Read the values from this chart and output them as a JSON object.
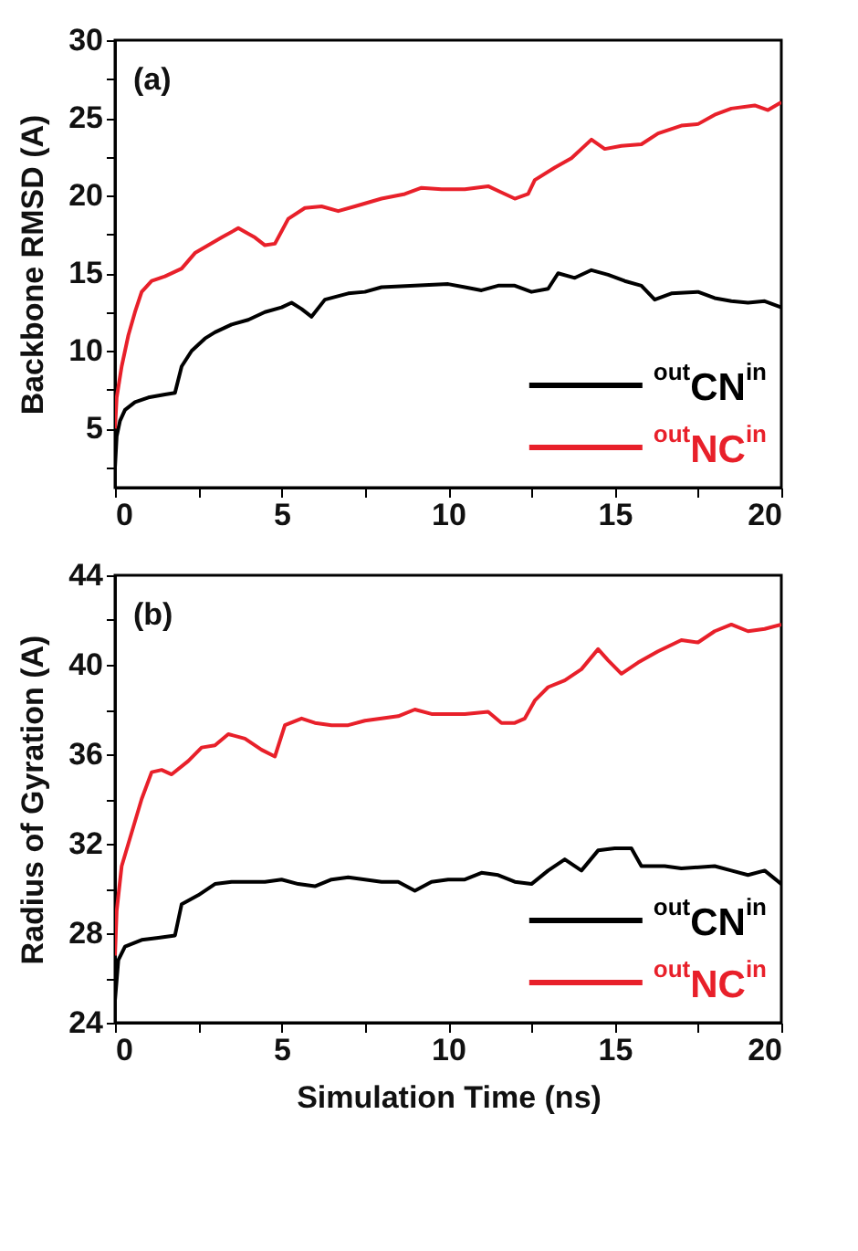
{
  "chart_data": [
    {
      "type": "line",
      "ylabel": "Backbone RMSD (A)",
      "annotations": [
        "(a)"
      ],
      "legend": "bottom right",
      "xlim": [
        0,
        20
      ],
      "xticks": [
        0,
        {
          "value": 2.5,
          "label": null
        },
        5,
        {
          "value": 7.5,
          "label": null
        },
        10,
        {
          "value": 12.5,
          "label": null
        },
        15,
        {
          "value": 17.5,
          "label": null
        },
        20
      ],
      "ylim": [
        1.2,
        30
      ],
      "yticks": [
        {
          "value": 2.5,
          "label": null
        },
        5,
        {
          "value": 7.5,
          "label": null
        },
        10,
        {
          "value": 12.5,
          "label": null
        },
        15,
        {
          "value": 17.5,
          "label": null
        },
        20,
        {
          "value": 22.5,
          "label": null
        },
        25,
        {
          "value": 27.5,
          "label": null
        },
        30
      ],
      "x": [
        0,
        0.05,
        0.15,
        0.3,
        0.6,
        1,
        1.5,
        1.8,
        2,
        2.3,
        2.7,
        3,
        3.5,
        4,
        4.5,
        5,
        5.3,
        5.6,
        5.9,
        6.3,
        7,
        7.5,
        8,
        9,
        10,
        10.5,
        11,
        11.5,
        12,
        12.5,
        13,
        13.3,
        13.8,
        14.3,
        14.8,
        15.3,
        15.8,
        16.2,
        16.7,
        17.5,
        18,
        18.5,
        19,
        19.5,
        20
      ],
      "series": [
        {
          "name": "$^{out}$CN$^{in}$",
          "color": "#000000",
          "values": [
            2.5,
            4.5,
            5.5,
            6.2,
            6.7,
            7,
            7.2,
            7.3,
            9,
            10,
            10.8,
            11.2,
            11.7,
            12,
            12.5,
            12.8,
            13.1,
            12.7,
            12.2,
            13.3,
            13.7,
            13.8,
            14.1,
            14.2,
            14.3,
            14.1,
            13.9,
            14.2,
            14.2,
            13.8,
            14,
            15,
            14.7,
            15.2,
            14.9,
            14.5,
            14.2,
            13.3,
            13.7,
            13.8,
            13.4,
            13.2,
            13.1,
            13.2,
            12.8
          ]
        },
        {
          "name": "$^{out}$NC$^{in}$",
          "color": "#e8202a",
          "x": [
            0,
            0.05,
            0.2,
            0.4,
            0.6,
            0.8,
            1.1,
            1.5,
            2,
            2.4,
            2.8,
            3.2,
            3.7,
            4.2,
            4.5,
            4.8,
            5.2,
            5.7,
            6.2,
            6.7,
            7.2,
            8,
            8.7,
            9.2,
            9.8,
            10.5,
            11.2,
            11.6,
            12,
            12.4,
            12.6,
            13.2,
            13.7,
            14.3,
            14.7,
            15.2,
            15.8,
            16.3,
            17,
            17.5,
            18,
            18.5,
            19.2,
            19.6,
            20
          ],
          "values": [
            5,
            7,
            9,
            11,
            12.5,
            13.8,
            14.5,
            14.8,
            15.3,
            16.3,
            16.8,
            17.3,
            17.9,
            17.3,
            16.8,
            16.9,
            18.5,
            19.2,
            19.3,
            19,
            19.3,
            19.8,
            20.1,
            20.5,
            20.4,
            20.4,
            20.6,
            20.2,
            19.8,
            20.1,
            21,
            21.8,
            22.4,
            23.6,
            23,
            23.2,
            23.3,
            24,
            24.5,
            24.6,
            25.2,
            25.6,
            25.8,
            25.5,
            26
          ]
        }
      ]
    },
    {
      "type": "line",
      "xlabel": "Simulation Time (ns)",
      "ylabel": "Radius of Gyration (A)",
      "annotations": [
        "(b)"
      ],
      "legend": "bottom right",
      "xlim": [
        0,
        20
      ],
      "xticks": [
        0,
        {
          "value": 2.5,
          "label": null
        },
        5,
        {
          "value": 7.5,
          "label": null
        },
        10,
        {
          "value": 12.5,
          "label": null
        },
        15,
        {
          "value": 17.5,
          "label": null
        },
        20
      ],
      "ylim": [
        24,
        44
      ],
      "yticks": [
        24,
        {
          "value": 26,
          "label": null
        },
        28,
        {
          "value": 30,
          "label": null
        },
        32,
        {
          "value": 34,
          "label": null
        },
        36,
        {
          "value": 38,
          "label": null
        },
        40,
        {
          "value": 42,
          "label": null
        },
        44
      ],
      "x": [
        0,
        0.1,
        0.3,
        0.8,
        1.3,
        1.8,
        2,
        2.5,
        3,
        3.5,
        4,
        4.5,
        5,
        5.5,
        6,
        6.5,
        7,
        8,
        8.5,
        9,
        9.5,
        10,
        10.5,
        11,
        11.5,
        12,
        12.5,
        13,
        13.5,
        14,
        14.5,
        15,
        15.5,
        15.8,
        16.5,
        17,
        18,
        18.5,
        19,
        19.5,
        20
      ],
      "series": [
        {
          "name": "$^{out}$CN$^{in}$",
          "color": "#000000",
          "values": [
            25,
            26.8,
            27.4,
            27.7,
            27.8,
            27.9,
            29.3,
            29.7,
            30.2,
            30.3,
            30.3,
            30.3,
            30.4,
            30.2,
            30.1,
            30.4,
            30.5,
            30.3,
            30.3,
            29.9,
            30.3,
            30.4,
            30.4,
            30.7,
            30.6,
            30.3,
            30.2,
            30.8,
            31.3,
            30.8,
            31.7,
            31.8,
            31.8,
            31,
            31,
            30.9,
            31,
            30.8,
            30.6,
            30.8,
            30.2
          ]
        },
        {
          "name": "$^{out}$NC$^{in}$",
          "color": "#e8202a",
          "x": [
            0,
            0.05,
            0.2,
            0.5,
            0.8,
            1.1,
            1.4,
            1.7,
            2.2,
            2.6,
            3,
            3.4,
            3.9,
            4.4,
            4.8,
            5.1,
            5.6,
            6,
            6.5,
            7,
            7.5,
            8,
            8.5,
            9,
            9.5,
            10,
            10.5,
            11.2,
            11.6,
            12,
            12.3,
            12.6,
            13,
            13.5,
            14,
            14.5,
            14.8,
            15.2,
            15.7,
            16.3,
            17,
            17.5,
            18,
            18.5,
            19,
            19.5,
            20
          ],
          "values": [
            27,
            29,
            31,
            32.5,
            34,
            35.2,
            35.3,
            35.1,
            35.7,
            36.3,
            36.4,
            36.9,
            36.7,
            36.2,
            35.9,
            37.3,
            37.6,
            37.4,
            37.3,
            37.3,
            37.5,
            37.6,
            37.7,
            38,
            37.8,
            37.8,
            37.8,
            37.9,
            37.4,
            37.4,
            37.6,
            38.4,
            39,
            39.3,
            39.8,
            40.7,
            40.2,
            39.6,
            40.1,
            40.6,
            41.1,
            41,
            41.5,
            41.8,
            41.5,
            41.6,
            41.8
          ]
        }
      ]
    }
  ]
}
